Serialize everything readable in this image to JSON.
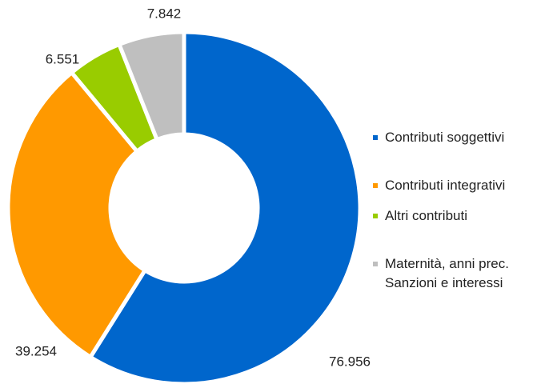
{
  "chart_data": {
    "type": "donut",
    "categories": [
      "Contributi soggettivi",
      "Contributi integrativi",
      "Altri contributi",
      "Maternità, anni prec.\nSanzioni e interessi"
    ],
    "values": [
      76956,
      39254,
      6551,
      7842
    ],
    "value_labels": [
      "76.956",
      "39.254",
      "6.551",
      "7.842"
    ],
    "colors": [
      "#0066cc",
      "#ff9900",
      "#99cc00",
      "#bfbfbf"
    ],
    "legend": "right"
  }
}
